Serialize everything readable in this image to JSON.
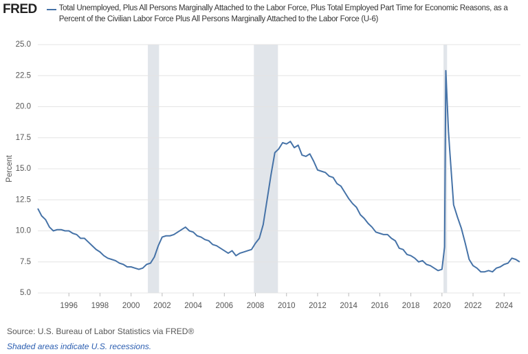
{
  "chart_data": {
    "type": "line",
    "logo": "FRED",
    "y_label": "Percent",
    "source": "Source: U.S. Bureau of Labor Statistics via FRED®",
    "note": "Shaded areas indicate U.S. recessions.",
    "xlim": [
      1994.0,
      2025.05
    ],
    "ylim": [
      5,
      25
    ],
    "xticks": [
      1996,
      1998,
      2000,
      2002,
      2004,
      2006,
      2008,
      2010,
      2012,
      2014,
      2016,
      2018,
      2020,
      2022,
      2024
    ],
    "yticks": [
      {
        "value": 5,
        "label": "5.0"
      },
      7.5,
      {
        "value": 10,
        "label": "10.0"
      },
      12.5,
      {
        "value": 15,
        "label": "15.0"
      },
      17.5,
      {
        "value": 20,
        "label": "20.0"
      },
      22.5,
      {
        "value": 25,
        "label": "25.0"
      }
    ],
    "grid": true,
    "recessions": [
      [
        2001.08,
        2001.8
      ],
      [
        2007.9,
        2009.45
      ],
      [
        2020.1,
        2020.33
      ]
    ],
    "recession_color": "#e1e5ea",
    "x": [
      1994.0,
      1994.25,
      1994.5,
      1994.75,
      1995.0,
      1995.25,
      1995.5,
      1995.75,
      1996.0,
      1996.25,
      1996.5,
      1996.75,
      1997.0,
      1997.25,
      1997.5,
      1997.75,
      1998.0,
      1998.25,
      1998.5,
      1998.75,
      1999.0,
      1999.25,
      1999.5,
      1999.75,
      2000.0,
      2000.25,
      2000.5,
      2000.75,
      2001.0,
      2001.25,
      2001.5,
      2001.75,
      2002.0,
      2002.25,
      2002.5,
      2002.75,
      2003.0,
      2003.25,
      2003.5,
      2003.75,
      2004.0,
      2004.25,
      2004.5,
      2004.75,
      2005.0,
      2005.25,
      2005.5,
      2005.75,
      2006.0,
      2006.25,
      2006.5,
      2006.75,
      2007.0,
      2007.25,
      2007.5,
      2007.75,
      2008.0,
      2008.25,
      2008.5,
      2008.75,
      2009.0,
      2009.25,
      2009.5,
      2009.75,
      2010.0,
      2010.25,
      2010.5,
      2010.75,
      2011.0,
      2011.25,
      2011.5,
      2011.75,
      2012.0,
      2012.25,
      2012.5,
      2012.75,
      2013.0,
      2013.25,
      2013.5,
      2013.75,
      2014.0,
      2014.25,
      2014.5,
      2014.75,
      2015.0,
      2015.25,
      2015.5,
      2015.75,
      2016.0,
      2016.25,
      2016.5,
      2016.75,
      2017.0,
      2017.25,
      2017.5,
      2017.75,
      2018.0,
      2018.25,
      2018.5,
      2018.75,
      2019.0,
      2019.25,
      2019.5,
      2019.75,
      2020.0,
      2020.17,
      2020.25,
      2020.42,
      2020.5,
      2020.75,
      2021.0,
      2021.25,
      2021.5,
      2021.75,
      2022.0,
      2022.25,
      2022.5,
      2022.75,
      2023.0,
      2023.25,
      2023.5,
      2023.75,
      2024.0,
      2024.25,
      2024.5,
      2024.75,
      2025.0
    ],
    "series": [
      {
        "name": "Total Unemployed, Plus All Persons Marginally Attached to the Labor Force, Plus Total Employed Part Time for Economic Reasons, as a Percent of the Civilian Labor Force Plus All Persons Marginally Attached to the Labor Force (U-6)",
        "color": "#4572a7",
        "values": [
          11.8,
          11.2,
          10.9,
          10.3,
          10.0,
          10.1,
          10.1,
          10.0,
          10.0,
          9.8,
          9.7,
          9.4,
          9.4,
          9.1,
          8.8,
          8.5,
          8.3,
          8.0,
          7.8,
          7.7,
          7.6,
          7.4,
          7.3,
          7.1,
          7.1,
          7.0,
          6.9,
          7.0,
          7.3,
          7.4,
          7.9,
          8.8,
          9.5,
          9.6,
          9.6,
          9.7,
          9.9,
          10.1,
          10.3,
          10.0,
          9.9,
          9.6,
          9.5,
          9.3,
          9.2,
          8.9,
          8.8,
          8.6,
          8.4,
          8.2,
          8.4,
          8.0,
          8.2,
          8.3,
          8.4,
          8.5,
          9.0,
          9.4,
          10.5,
          12.5,
          14.5,
          16.3,
          16.6,
          17.1,
          17.0,
          17.2,
          16.7,
          16.9,
          16.1,
          16.0,
          16.2,
          15.6,
          14.9,
          14.8,
          14.7,
          14.4,
          14.3,
          13.8,
          13.6,
          13.1,
          12.6,
          12.2,
          11.9,
          11.3,
          11.0,
          10.6,
          10.3,
          9.9,
          9.8,
          9.7,
          9.7,
          9.4,
          9.2,
          8.6,
          8.5,
          8.1,
          8.0,
          7.8,
          7.5,
          7.6,
          7.3,
          7.2,
          7.0,
          6.8,
          6.9,
          8.7,
          22.9,
          18.0,
          16.5,
          12.1,
          11.1,
          10.2,
          9.0,
          7.7,
          7.2,
          7.0,
          6.7,
          6.7,
          6.8,
          6.7,
          7.0,
          7.1,
          7.3,
          7.4,
          7.8,
          7.7,
          7.5
        ]
      }
    ]
  }
}
